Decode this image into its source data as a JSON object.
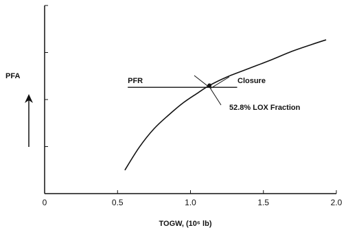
{
  "chart_data": {
    "type": "line",
    "title": "",
    "xlabel": "TOGW, (10⁶ lb)",
    "ylabel": "PFA",
    "xlim": [
      0,
      2.0
    ],
    "x_ticks": [
      0,
      0.5,
      1.0,
      1.5,
      2.0
    ],
    "x_tick_labels": [
      "0",
      "0.5",
      "1.0",
      "1.5",
      "2.0"
    ],
    "y_ticks_count": 4,
    "y_tick_labels_visible": false,
    "grid": false,
    "series": [
      {
        "name": "52.8% LOX Fraction",
        "x": [
          0.55,
          0.65,
          0.75,
          0.85,
          0.95,
          1.05,
          1.13,
          1.25,
          1.4,
          1.55,
          1.7,
          1.83,
          1.93
        ],
        "y": [
          0.5,
          0.99,
          1.38,
          1.67,
          1.93,
          2.14,
          2.3,
          2.48,
          2.66,
          2.84,
          3.03,
          3.17,
          3.27
        ]
      }
    ],
    "reference_lines": [
      {
        "label": "PFR",
        "y": 2.26,
        "x_start": 0.57,
        "x_end": 1.32
      }
    ],
    "markers": [
      {
        "label": "Closure",
        "x": 1.13,
        "y": 2.3
      }
    ],
    "annotations": [
      {
        "text": "Closure",
        "points_to": "closure-point"
      },
      {
        "text": "52.8% LOX Fraction",
        "points_to": "curve"
      }
    ],
    "colors": {
      "line": "#111111",
      "background": "#ffffff"
    }
  }
}
